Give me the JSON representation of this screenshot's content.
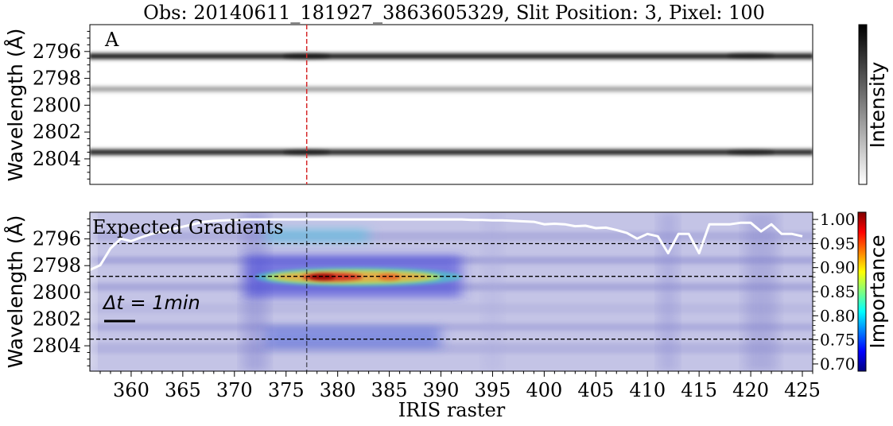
{
  "chart_data": [
    {
      "type": "heatmap",
      "panel_letter": "A",
      "title": "Obs: 20140611_181927_3863605329,  Slit Position: 3,  Pixel: 100",
      "ylabel": "Wavelength (Å)",
      "yticks": [
        "2796",
        "2798",
        "2800",
        "2802",
        "2804"
      ],
      "ytick_values": [
        2796,
        2798,
        2800,
        2802,
        2804
      ],
      "ylim": [
        2794.0,
        2805.9
      ],
      "xlim": [
        356,
        426
      ],
      "colorbar_label": "Intensity",
      "colormap": "gray_r",
      "marker_x": 377,
      "spectral_lines": [
        {
          "wavelength": 2796.35,
          "strength": 0.9
        },
        {
          "wavelength": 2798.8,
          "strength": 0.3
        },
        {
          "wavelength": 2803.5,
          "strength": 0.85
        }
      ]
    },
    {
      "type": "heatmap",
      "annotation": "Expected Gradients",
      "time_scale_label": "Δt = 1min",
      "ylabel": "Wavelength (Å)",
      "xlabel": "IRIS raster",
      "yticks": [
        "2796",
        "2798",
        "2800",
        "2802",
        "2804"
      ],
      "ytick_values": [
        2796,
        2798,
        2800,
        2802,
        2804
      ],
      "xticks": [
        "360",
        "365",
        "370",
        "375",
        "380",
        "385",
        "390",
        "395",
        "400",
        "405",
        "410",
        "415",
        "420",
        "425"
      ],
      "xtick_values": [
        360,
        365,
        370,
        375,
        380,
        385,
        390,
        395,
        400,
        405,
        410,
        415,
        420,
        425
      ],
      "xlim": [
        356,
        426
      ],
      "ylim": [
        2794.0,
        2805.9
      ],
      "colorbar_label": "Importance",
      "colormap": "jet",
      "colorbar_ticks": [
        "0.70",
        "0.75",
        "0.80",
        "0.85",
        "0.90",
        "0.95",
        "1.00"
      ],
      "colorbar_tick_values": [
        0.7,
        0.75,
        0.8,
        0.85,
        0.9,
        0.95,
        1.0
      ],
      "colorbar_range": [
        0.685,
        1.015
      ],
      "marker_x": 377,
      "reference_lines_wavelength": [
        2796.35,
        2798.8,
        2803.5
      ],
      "importance_curve": {
        "x": [
          356,
          357,
          358,
          359,
          360,
          361,
          362,
          363,
          364,
          365,
          366,
          367,
          368,
          369,
          370,
          371,
          372,
          373,
          374,
          375,
          376,
          377,
          378,
          379,
          380,
          381,
          382,
          383,
          384,
          385,
          386,
          387,
          388,
          389,
          390,
          391,
          392,
          393,
          394,
          395,
          396,
          397,
          398,
          399,
          400,
          401,
          402,
          403,
          404,
          405,
          406,
          407,
          408,
          409,
          410,
          411,
          412,
          413,
          414,
          415,
          416,
          417,
          418,
          419,
          420,
          421,
          422,
          423,
          424,
          425
        ],
        "y": [
          0.895,
          0.905,
          0.94,
          0.96,
          0.955,
          0.963,
          0.97,
          0.975,
          0.98,
          0.985,
          0.99,
          0.995,
          0.997,
          0.998,
          0.999,
          1.0,
          1.0,
          1.0,
          1.0,
          1.0,
          1.0,
          1.0,
          1.0,
          1.0,
          1.0,
          1.0,
          1.0,
          1.0,
          1.0,
          1.0,
          1.0,
          1.0,
          1.0,
          1.0,
          1.0,
          1.0,
          1.0,
          0.999,
          0.999,
          0.998,
          0.998,
          0.997,
          0.996,
          0.995,
          0.99,
          0.991,
          0.99,
          0.986,
          0.987,
          0.982,
          0.983,
          0.978,
          0.972,
          0.96,
          0.97,
          0.965,
          0.93,
          0.97,
          0.97,
          0.93,
          0.99,
          0.99,
          0.99,
          0.993,
          0.993,
          0.975,
          0.99,
          0.97,
          0.97,
          0.965
        ]
      },
      "importance_hotspots": [
        {
          "x": 382,
          "wavelength": 2798.85,
          "value": 0.99
        },
        {
          "x": 386,
          "wavelength": 2798.85,
          "value": 0.93
        },
        {
          "x": 377,
          "wavelength": 2795.7,
          "value": 0.86
        },
        {
          "x": 380,
          "wavelength": 2803.2,
          "value": 0.78
        }
      ]
    }
  ]
}
